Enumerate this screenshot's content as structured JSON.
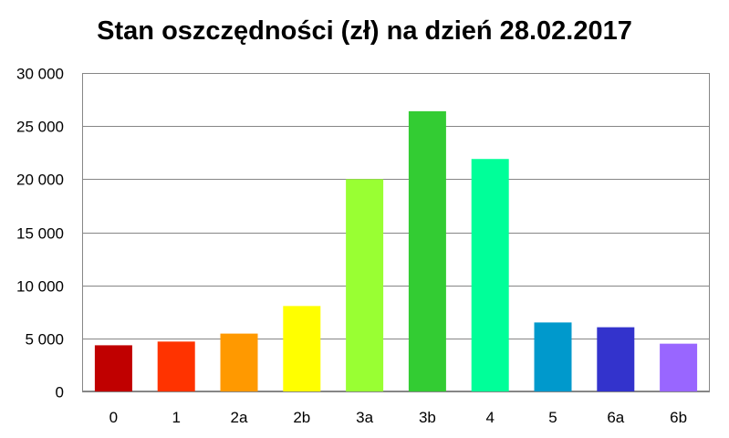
{
  "chart_data": {
    "type": "bar",
    "title": "Stan oszczędności (zł) na dzień 28.02.2017",
    "categories": [
      "0",
      "1",
      "2a",
      "2b",
      "3a",
      "3b",
      "4",
      "5",
      "6a",
      "6b"
    ],
    "values": [
      4350,
      4700,
      5450,
      8050,
      20000,
      26400,
      21900,
      6500,
      6050,
      4500
    ],
    "colors": [
      "#c00000",
      "#ff3300",
      "#ff9900",
      "#ffff00",
      "#99ff33",
      "#33cc33",
      "#00ff99",
      "#0099cc",
      "#3333cc",
      "#9966ff"
    ],
    "ylim": [
      0,
      30000
    ],
    "yticks": [
      0,
      5000,
      10000,
      15000,
      20000,
      25000,
      30000
    ],
    "ytick_labels": [
      "0",
      "5 000",
      "10 000",
      "15 000",
      "20 000",
      "25 000",
      "30 000"
    ],
    "xlabel": "",
    "ylabel": "",
    "grid": true,
    "legend": false
  }
}
